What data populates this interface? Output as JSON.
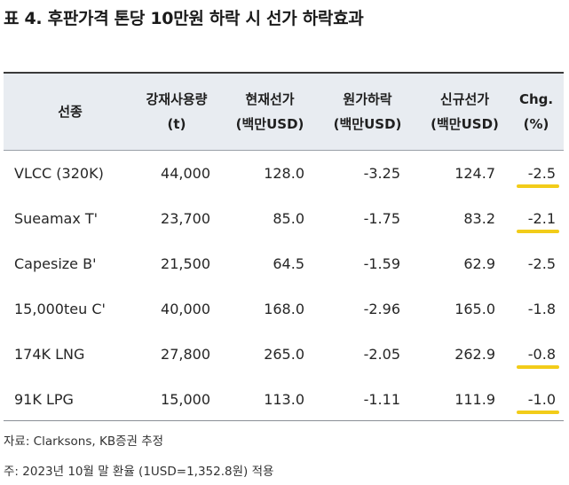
{
  "title": "표 4. 후판가격 톤당 10만원 하락 시 선가 하락효과",
  "columns": [
    {
      "key": "ship",
      "lines": [
        "선종"
      ]
    },
    {
      "key": "steel",
      "lines": [
        "강재사용량",
        "(t)"
      ]
    },
    {
      "key": "current",
      "lines": [
        "현재선가",
        "(백만USD)"
      ]
    },
    {
      "key": "cost",
      "lines": [
        "원가하락",
        "(백만USD)"
      ]
    },
    {
      "key": "newbuild",
      "lines": [
        "신규선가",
        "(백만USD)"
      ]
    },
    {
      "key": "chg",
      "lines": [
        "Chg.",
        "(%)"
      ]
    }
  ],
  "rows": [
    {
      "ship": "VLCC (320K)",
      "steel": "44,000",
      "current": "128.0",
      "cost": "-3.25",
      "newbuild": "124.7",
      "chg": "-2.5",
      "highlight": true
    },
    {
      "ship": "Sueamax T'",
      "steel": "23,700",
      "current": "85.0",
      "cost": "-1.75",
      "newbuild": "83.2",
      "chg": "-2.1",
      "highlight": true
    },
    {
      "ship": "Capesize B'",
      "steel": "21,500",
      "current": "64.5",
      "cost": "-1.59",
      "newbuild": "62.9",
      "chg": "-2.5",
      "highlight": false
    },
    {
      "ship": "15,000teu C'",
      "steel": "40,000",
      "current": "168.0",
      "cost": "-2.96",
      "newbuild": "165.0",
      "chg": "-1.8",
      "highlight": false
    },
    {
      "ship": "174K LNG",
      "steel": "27,800",
      "current": "265.0",
      "cost": "-2.05",
      "newbuild": "262.9",
      "chg": "-0.8",
      "highlight": true
    },
    {
      "ship": "91K LPG",
      "steel": "15,000",
      "current": "113.0",
      "cost": "-1.11",
      "newbuild": "111.9",
      "chg": "-1.0",
      "highlight": true
    }
  ],
  "source": "자료: Clarksons, KB증권 추정",
  "footnote": "주: 2023년 10월 말 환율 (1USD=1,352.8원) 적용",
  "colors": {
    "header_bg": "#e8ecf1",
    "highlight": "#f2cc19"
  }
}
